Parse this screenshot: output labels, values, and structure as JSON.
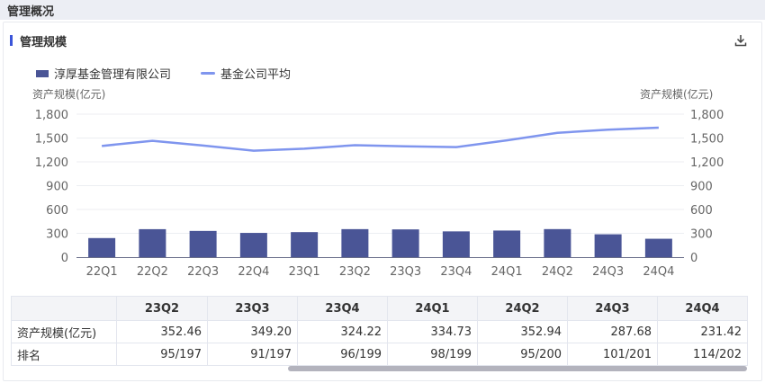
{
  "header": {
    "title": "管理概况"
  },
  "section": {
    "title": "管理规模",
    "download_icon": "download-icon"
  },
  "chart_data": {
    "type": "bar",
    "categories": [
      "22Q1",
      "22Q2",
      "22Q3",
      "22Q4",
      "23Q1",
      "23Q2",
      "23Q3",
      "23Q4",
      "24Q1",
      "24Q2",
      "24Q3",
      "24Q4"
    ],
    "series": [
      {
        "name": "淳厚基金管理有限公司",
        "type": "bar",
        "color": "#4a5596",
        "values": [
          240,
          352,
          330,
          305,
          315,
          352.46,
          349.2,
          324.22,
          334.73,
          352.94,
          287.68,
          231.42
        ]
      },
      {
        "name": "基金公司平均",
        "type": "line",
        "color": "#7f95ee",
        "values": [
          1400,
          1465,
          1405,
          1340,
          1365,
          1410,
          1395,
          1385,
          1470,
          1565,
          1605,
          1630
        ]
      }
    ],
    "ylabel": "资产规模(亿元)",
    "y2label": "资产规模(亿元)",
    "yticks": [
      "0",
      "300",
      "600",
      "900",
      "1,200",
      "1,500",
      "1,800"
    ],
    "ylim": [
      0,
      1800
    ],
    "grid": true,
    "legend": "top-left"
  },
  "table": {
    "columns": [
      "23Q2",
      "23Q3",
      "23Q4",
      "24Q1",
      "24Q2",
      "24Q3",
      "24Q4"
    ],
    "rows": [
      {
        "label": "资产规模(亿元)",
        "values": [
          "352.46",
          "349.20",
          "324.22",
          "334.73",
          "352.94",
          "287.68",
          "231.42"
        ]
      },
      {
        "label": "排名",
        "values": [
          "95/197",
          "91/197",
          "96/199",
          "98/199",
          "95/200",
          "101/201",
          "114/202"
        ]
      }
    ]
  }
}
